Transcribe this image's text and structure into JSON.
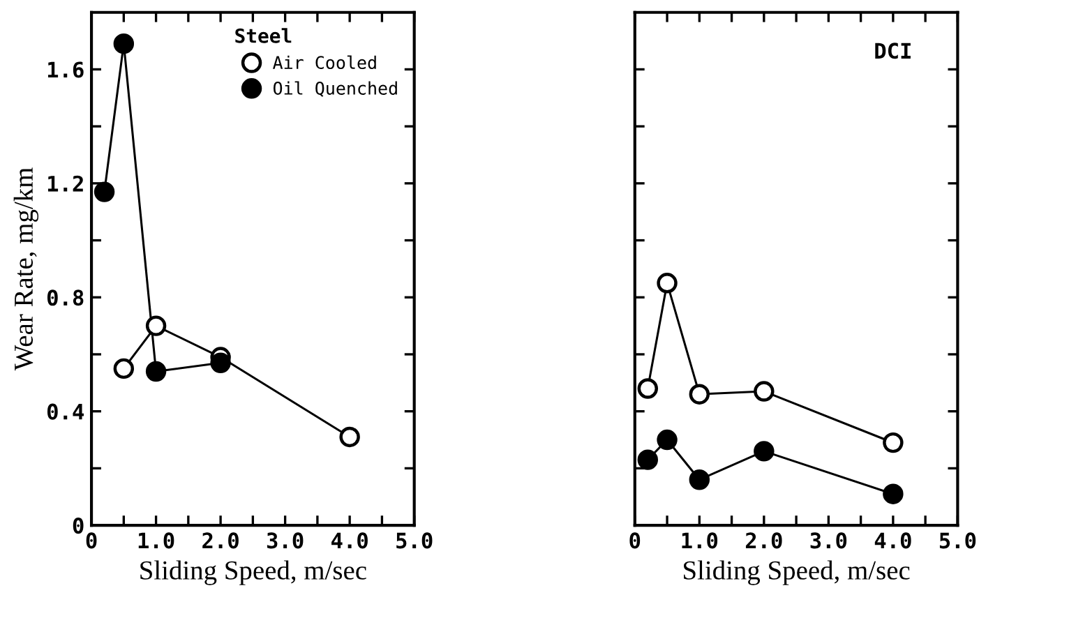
{
  "chart_data": [
    {
      "type": "line",
      "xlabel": "Sliding Speed, m/sec",
      "ylabel": "Wear Rate, mg/km",
      "legend_title": "Steel",
      "legend": "top right",
      "marker": "circle",
      "xlim": [
        0,
        5
      ],
      "ylim": [
        0,
        1.8
      ],
      "xticks": [
        0,
        {
          "value": 0.5,
          "label": null
        },
        {
          "value": 1,
          "label": "1.0"
        },
        {
          "value": 1.5,
          "label": null
        },
        {
          "value": 2,
          "label": "2.0"
        },
        {
          "value": 2.5,
          "label": null
        },
        {
          "value": 3,
          "label": "3.0"
        },
        {
          "value": 3.5,
          "label": null
        },
        {
          "value": 4,
          "label": "4.0"
        },
        {
          "value": 4.5,
          "label": null
        },
        {
          "value": 5,
          "label": "5.0"
        }
      ],
      "yticks": [
        0,
        {
          "value": 0.2,
          "label": null
        },
        0.4,
        {
          "value": 0.6,
          "label": null
        },
        0.8,
        {
          "value": 1.0,
          "label": null
        },
        1.2,
        {
          "value": 1.4,
          "label": null
        },
        1.6
      ],
      "series": [
        {
          "name": "Air Cooled",
          "color": "#ffffff",
          "x": [
            0.5,
            1.0,
            2.0,
            4.0
          ],
          "values": [
            0.55,
            0.7,
            0.59,
            0.31
          ]
        },
        {
          "name": "Oil Quenched",
          "color": "#000000",
          "x": [
            0.2,
            0.5,
            1.0,
            2.0
          ],
          "values": [
            1.17,
            1.69,
            0.54,
            0.57
          ]
        }
      ]
    },
    {
      "type": "line",
      "xlabel": "Sliding Speed, m/sec",
      "annotations": [
        "DCI"
      ],
      "marker": "circle",
      "tick_labels": "x",
      "xlim": [
        0,
        5
      ],
      "ylim": [
        0,
        1.8
      ],
      "xticks": [
        0,
        {
          "value": 0.5,
          "label": null
        },
        {
          "value": 1,
          "label": "1.0"
        },
        {
          "value": 1.5,
          "label": null
        },
        {
          "value": 2,
          "label": "2.0"
        },
        {
          "value": 2.5,
          "label": null
        },
        {
          "value": 3,
          "label": "3.0"
        },
        {
          "value": 3.5,
          "label": null
        },
        {
          "value": 4,
          "label": "4.0"
        },
        {
          "value": 4.5,
          "label": null
        },
        {
          "value": 5,
          "label": "5.0"
        }
      ],
      "yticks": [
        0,
        0.2,
        0.4,
        0.6,
        0.8,
        1.0,
        1.2,
        1.4,
        1.6
      ],
      "series": [
        {
          "color": "#ffffff",
          "x": [
            0.2,
            0.5,
            1.0,
            2.0,
            4.0
          ],
          "values": [
            0.48,
            0.85,
            0.46,
            0.47,
            0.29
          ]
        },
        {
          "color": "#000000",
          "x": [
            0.2,
            0.5,
            1.0,
            2.0,
            4.0
          ],
          "values": [
            0.23,
            0.3,
            0.16,
            0.26,
            0.11
          ]
        }
      ]
    }
  ]
}
